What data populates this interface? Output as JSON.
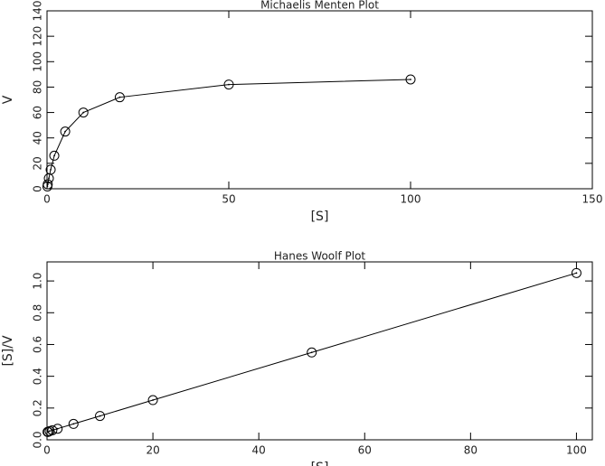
{
  "chart_data": [
    {
      "type": "line",
      "title": "Michaelis Menten Plot",
      "x_label": "[S]",
      "y_label": "V",
      "x": [
        0.1,
        0.2,
        0.5,
        1,
        2,
        5,
        10,
        20,
        50,
        100
      ],
      "series": [
        {
          "name": "V",
          "color": "#000000",
          "values": [
            1.8,
            3.5,
            8.2,
            15,
            26,
            45,
            60,
            72,
            82,
            86
          ]
        }
      ],
      "xlim": [
        0,
        150
      ],
      "xticks": [
        0,
        50,
        100,
        150
      ],
      "ylim": [
        0,
        140
      ],
      "yticks": [
        0,
        20,
        40,
        60,
        80,
        100,
        120,
        140
      ]
    },
    {
      "type": "line",
      "title": "Hanes Woolf Plot",
      "x_label": "[S]",
      "y_label": "[S]/V",
      "x": [
        0.1,
        0.2,
        0.5,
        1,
        2,
        5,
        10,
        20,
        50,
        100
      ],
      "series": [
        {
          "name": "[S]/V",
          "color": "#000000",
          "values": [
            0.05,
            0.05,
            0.055,
            0.06,
            0.07,
            0.1,
            0.15,
            0.25,
            0.55,
            1.05
          ]
        }
      ],
      "xlim": [
        0,
        103
      ],
      "xticks": [
        0,
        20,
        40,
        60,
        80,
        100
      ],
      "ylim": [
        0,
        1.12
      ],
      "yticks": [
        {
          "value": 0,
          "label": "0.0"
        },
        0.2,
        0.4,
        0.6,
        0.8,
        {
          "value": 1,
          "label": "1.0"
        }
      ]
    }
  ]
}
